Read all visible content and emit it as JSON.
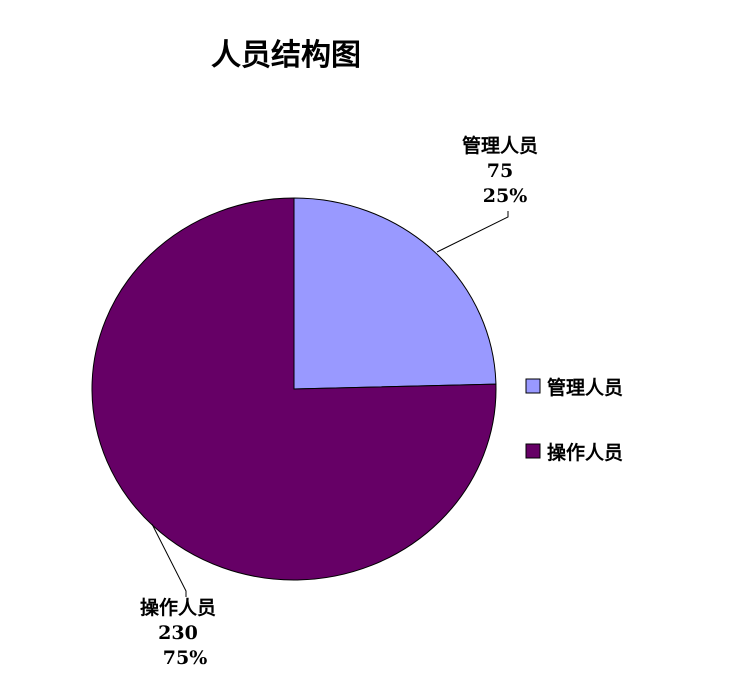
{
  "chart_data": {
    "type": "pie",
    "title": "人员结构图",
    "categories": [
      "管理人员",
      "操作人员"
    ],
    "values": [
      75,
      230
    ],
    "percent_labels": [
      "25%",
      "75%"
    ],
    "colors": [
      "#9999FF",
      "#660066"
    ],
    "start_angle": "12 o'clock",
    "direction": "clockwise",
    "legend": {
      "position": "right",
      "items": [
        "管理人员",
        "操作人员"
      ]
    },
    "data_labels": [
      {
        "category": "管理人员",
        "value": "75",
        "percent": "25%"
      },
      {
        "category": "操作人员",
        "value": "230",
        "percent": "75%"
      }
    ]
  }
}
